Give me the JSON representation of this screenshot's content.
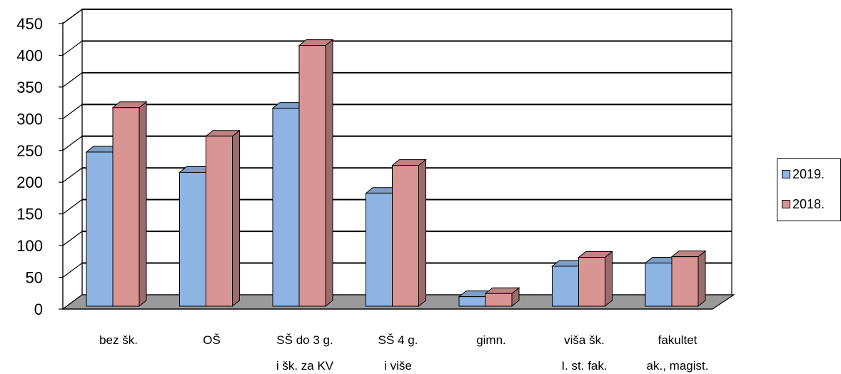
{
  "chart_data": {
    "type": "bar",
    "title": "",
    "xlabel": "",
    "ylabel": "",
    "ylim": [
      0,
      450
    ],
    "yticks": [
      0,
      50,
      100,
      150,
      200,
      250,
      300,
      350,
      400,
      450
    ],
    "grid": true,
    "legend_position": "right",
    "categories": [
      [
        "bez šk."
      ],
      [
        "OŠ"
      ],
      [
        "SŠ do 3 g.",
        "i šk. za KV"
      ],
      [
        "SŠ 4 g.",
        "i više"
      ],
      [
        "gimn."
      ],
      [
        "viša šk.",
        "I. st. fak."
      ],
      [
        "fakultet",
        "ak., magist."
      ]
    ],
    "series": [
      {
        "name": "2019.",
        "color": "#8db4e2",
        "values": [
          243,
          211,
          312,
          178,
          15,
          63,
          68
        ]
      },
      {
        "name": "2018.",
        "color": "#d99594",
        "values": [
          313,
          268,
          411,
          222,
          20,
          77,
          78
        ]
      }
    ]
  }
}
